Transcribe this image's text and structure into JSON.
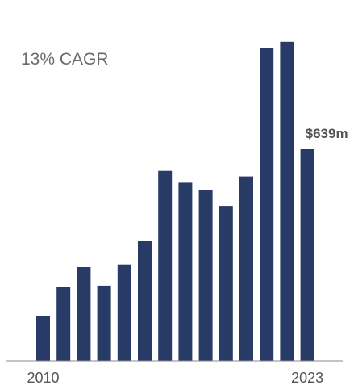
{
  "chart_data": {
    "type": "bar",
    "title": "",
    "xlabel": "",
    "ylabel": "",
    "annotation": "13% CAGR",
    "categories": [
      "2010",
      "2011",
      "2012",
      "2013",
      "2014",
      "2015",
      "2016",
      "2017",
      "2018",
      "2019",
      "2020",
      "2021",
      "2022",
      "2023"
    ],
    "visible_tick_labels": [
      "2010",
      "2023"
    ],
    "values": [
      136,
      224,
      283,
      227,
      291,
      363,
      574,
      538,
      517,
      468,
      557,
      945,
      964,
      639
    ],
    "data_labels": [
      {
        "index": 13,
        "text": "$639m"
      }
    ],
    "ylim": [
      0,
      1000
    ],
    "grid": false,
    "bar_color": "#283a66",
    "axis_color": "#8a8a8a"
  }
}
